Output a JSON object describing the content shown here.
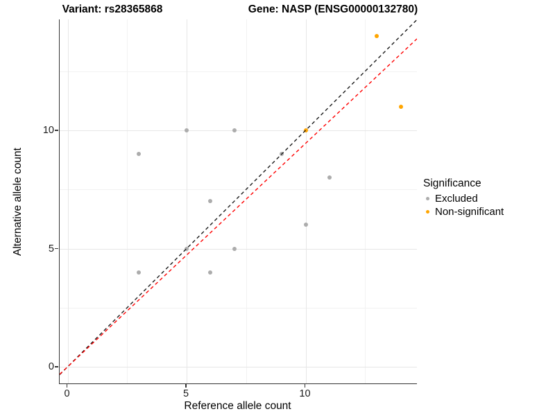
{
  "titles": {
    "variant": "Variant: rs28365868",
    "gene": "Gene: NASP (ENSG00000132780)"
  },
  "axes": {
    "x": {
      "label": "Reference allele count",
      "ticks": [
        "0",
        "5",
        "10"
      ]
    },
    "y": {
      "label": "Alternative allele count",
      "ticks": [
        "0",
        "5",
        "10"
      ]
    }
  },
  "legend": {
    "title": "Significance",
    "items": [
      {
        "label": "Excluded",
        "color": "#acacac"
      },
      {
        "label": "Non-significant",
        "color": "#FFA500"
      }
    ]
  },
  "chart_data": {
    "type": "scatter",
    "title": "Variant: rs28365868 / Gene: NASP (ENSG00000132780)",
    "xlabel": "Reference allele count",
    "ylabel": "Alternative allele count",
    "xlim": [
      -0.35,
      14.7
    ],
    "ylim": [
      -0.7,
      14.7
    ],
    "x_ticks": [
      0,
      5,
      10
    ],
    "y_ticks": [
      0,
      5,
      10
    ],
    "minor_ticks_x": [
      2.5,
      7.5,
      12.5
    ],
    "minor_ticks_y": [
      2.5,
      7.5,
      12.5
    ],
    "grid": "major+minor",
    "legend_position": "right",
    "series": [
      {
        "name": "Excluded",
        "color": "#acacac",
        "points": [
          [
            3,
            4
          ],
          [
            3,
            9
          ],
          [
            5,
            5
          ],
          [
            5,
            10
          ],
          [
            6,
            4
          ],
          [
            6,
            7
          ],
          [
            7,
            5
          ],
          [
            7,
            10
          ],
          [
            9,
            9
          ],
          [
            10,
            6
          ],
          [
            11,
            8
          ]
        ]
      },
      {
        "name": "Non-significant",
        "color": "#FFA500",
        "points": [
          [
            10,
            10
          ],
          [
            13,
            14
          ],
          [
            14,
            11
          ]
        ]
      }
    ],
    "lines": [
      {
        "name": "identity",
        "slope": 1.0,
        "intercept": 0,
        "color": "#1a1a1a",
        "style": "dashed"
      },
      {
        "name": "fit",
        "slope": 0.945,
        "intercept": 0,
        "color": "#FF0000",
        "style": "dashed"
      }
    ]
  }
}
